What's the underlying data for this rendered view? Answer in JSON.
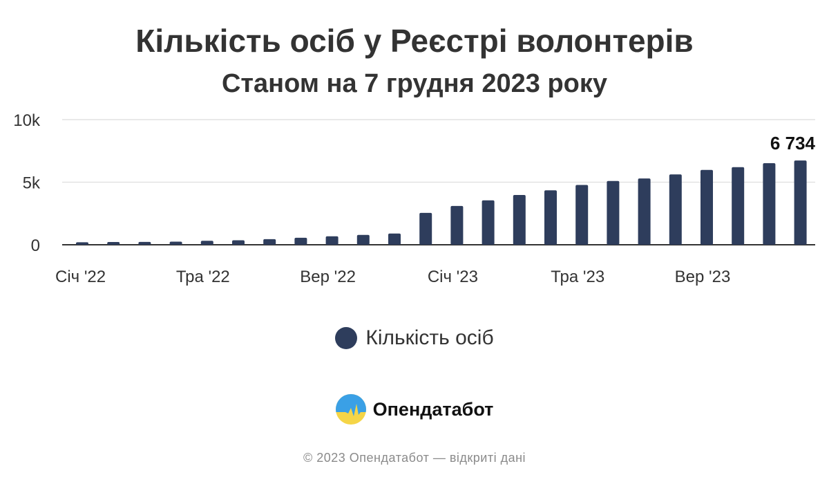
{
  "chart_data": {
    "type": "bar",
    "title": "Кількість осіб у Реєстрі волонтерів",
    "subtitle": "Станом на 7 грудня 2023 року",
    "x": [
      "2022-01",
      "2022-02",
      "2022-03",
      "2022-04",
      "2022-05",
      "2022-06",
      "2022-07",
      "2022-08",
      "2022-09",
      "2022-10",
      "2022-11",
      "2022-12",
      "2023-01",
      "2023-02",
      "2023-03",
      "2023-04",
      "2023-05",
      "2023-06",
      "2023-07",
      "2023-08",
      "2023-09",
      "2023-10",
      "2023-11",
      "2023-12"
    ],
    "x_tick_labels": [
      {
        "at": "2022-01",
        "label": "Січ '22"
      },
      {
        "at": "2022-05",
        "label": "Тра '22"
      },
      {
        "at": "2022-09",
        "label": "Вер '22"
      },
      {
        "at": "2023-01",
        "label": "Січ '23"
      },
      {
        "at": "2023-05",
        "label": "Тра '23"
      },
      {
        "at": "2023-09",
        "label": "Вер '23"
      }
    ],
    "series": [
      {
        "name": "Кількість осіб",
        "color": "#2e3d5c",
        "values": [
          200,
          220,
          230,
          250,
          320,
          360,
          450,
          560,
          680,
          790,
          900,
          2550,
          3100,
          3550,
          3980,
          4350,
          4780,
          5100,
          5300,
          5620,
          5980,
          6200,
          6520,
          6734
        ]
      }
    ],
    "y_ticks": [
      {
        "value": 0,
        "label": "0"
      },
      {
        "value": 5000,
        "label": "5k"
      },
      {
        "value": 10000,
        "label": "10k"
      }
    ],
    "ylim": [
      0,
      10000
    ],
    "grid": true,
    "data_labels": [
      {
        "at": "2023-12",
        "label": "6 734"
      }
    ],
    "legend": "bottom-center"
  },
  "brand": {
    "name": "Опендатабот",
    "logo_icon": "opendatabot-logo-icon"
  },
  "footer": {
    "text": "© 2023 Опендатабот — відкриті дані"
  }
}
